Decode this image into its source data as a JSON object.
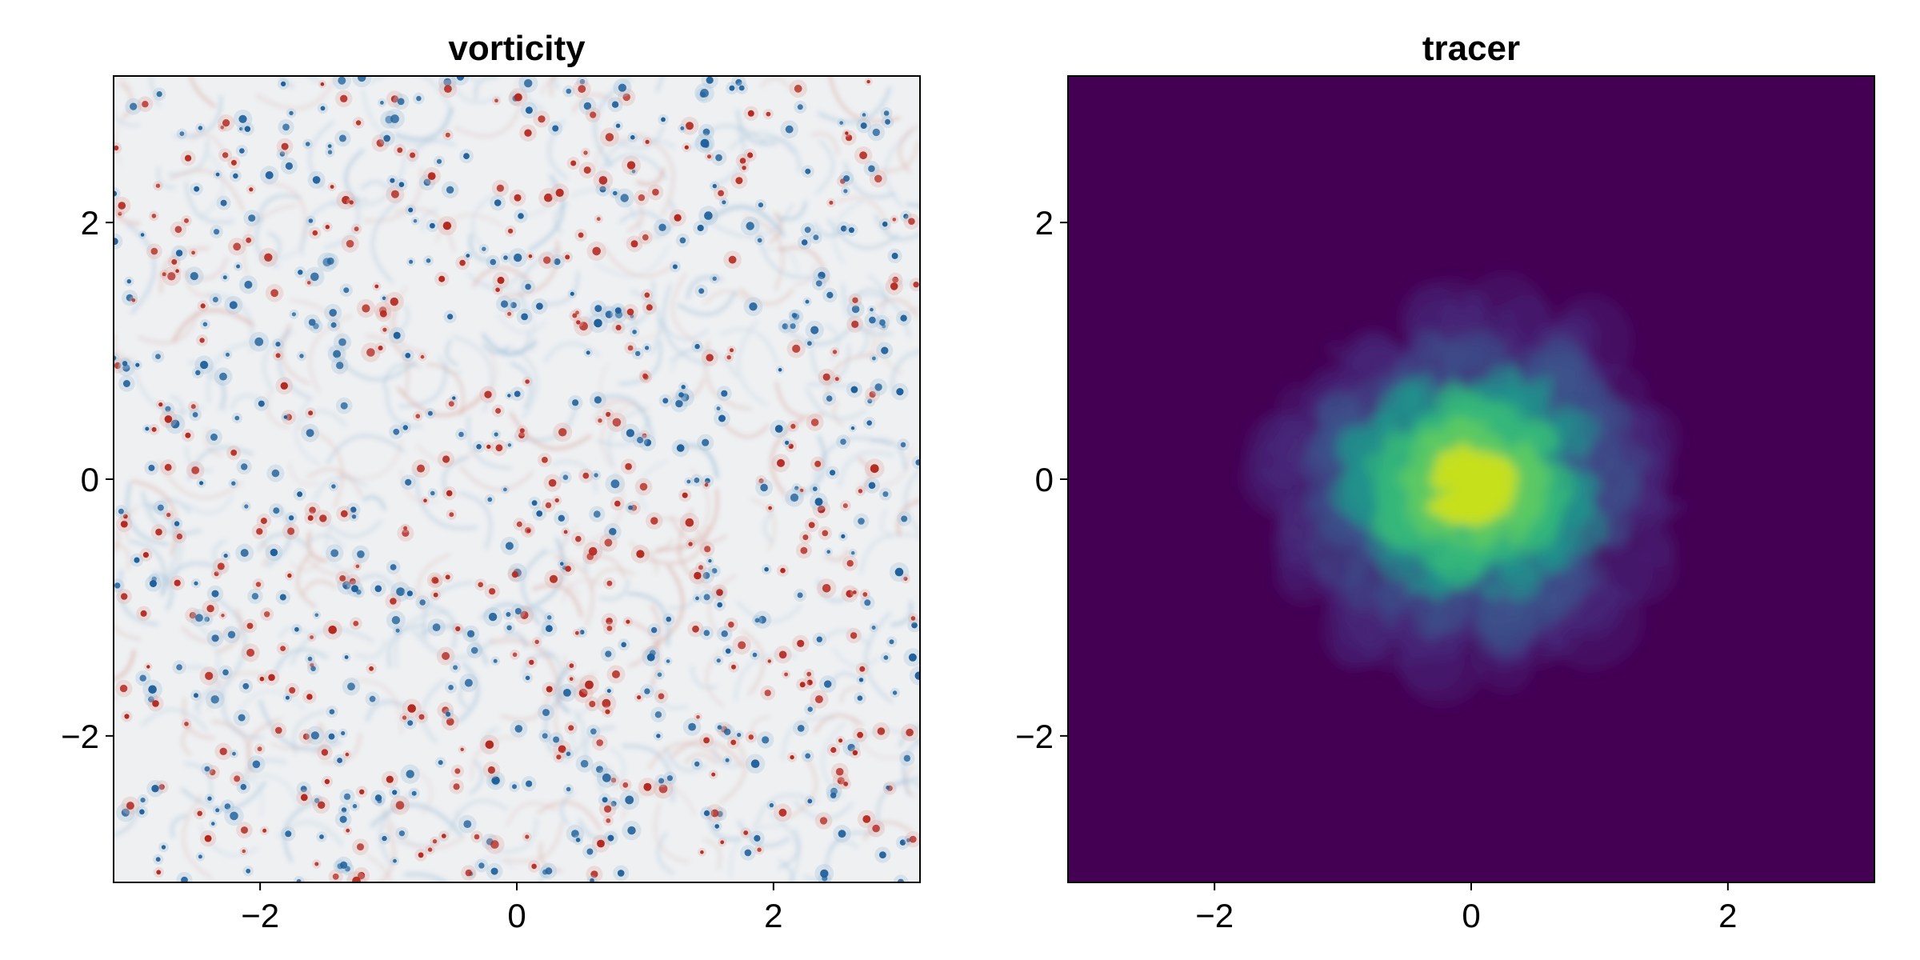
{
  "chart_data": [
    {
      "type": "heatmap",
      "title": "vorticity",
      "xlabel": "",
      "ylabel": "",
      "xlim": [
        -3.14159,
        3.14159
      ],
      "ylim": [
        -3.14159,
        3.14159
      ],
      "xticks": [
        -2,
        0,
        2
      ],
      "yticks": [
        -2,
        0,
        2
      ],
      "xtick_labels": [
        "−2",
        "0",
        "2"
      ],
      "ytick_labels": [
        "−2",
        "0",
        "2"
      ],
      "colormap": "balance (diverging blue–white–red)",
      "colors": {
        "negative": "#1f5f9a",
        "neutral": "#eef0f2",
        "positive": "#b3271f"
      },
      "grid": false,
      "field": "many small, randomly scattered coherent vortices of both signs over a fully turbulent filamentary background"
    },
    {
      "type": "heatmap",
      "title": "tracer",
      "xlabel": "",
      "ylabel": "",
      "xlim": [
        -3.14159,
        3.14159
      ],
      "ylim": [
        -3.14159,
        3.14159
      ],
      "xticks": [
        -2,
        0,
        2
      ],
      "yticks": [
        -2,
        0,
        2
      ],
      "xtick_labels": [
        "−2",
        "0",
        "2"
      ],
      "ytick_labels": [
        "−2",
        "0",
        "2"
      ],
      "colormap": "viridis",
      "colors": {
        "background": "#440154",
        "low": "#3b528b",
        "mid": "#21918c",
        "high": "#5ec962",
        "max": "#c8e020"
      },
      "grid": false,
      "field": "tracer blob centred near (0, 0), radius about 1.5, with turbulent filamentary edges; highest concentration near the centre"
    }
  ]
}
